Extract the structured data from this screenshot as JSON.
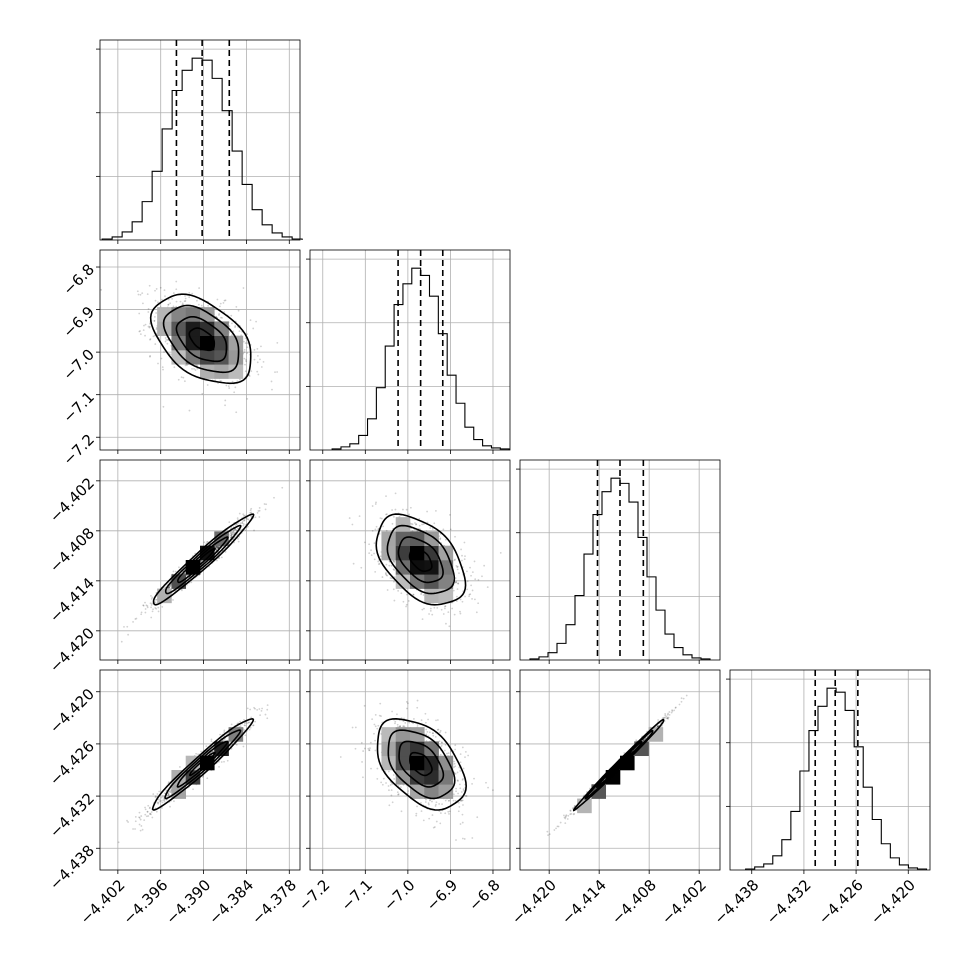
{
  "chart_data": {
    "type": "corner",
    "grid": true,
    "n_params": 4,
    "params": [
      {
        "range": [
          -4.4045,
          -4.3765
        ],
        "ticks": [
          "−4.402",
          "−4.396",
          "−4.390",
          "−4.384",
          "−4.378"
        ],
        "tick_values": [
          -4.402,
          -4.396,
          -4.39,
          -4.384,
          -4.378
        ],
        "mean": -4.3902,
        "sd": 0.0035,
        "quantiles": [
          -4.3938,
          -4.3902,
          -4.3864
        ]
      },
      {
        "range": [
          -7.23,
          -6.76
        ],
        "ticks": [
          "−7.2",
          "−7.1",
          "−7.0",
          "−6.9",
          "−6.8"
        ],
        "tick_values": [
          -7.2,
          -7.1,
          -7.0,
          -6.9,
          -6.8
        ],
        "mean": -6.97,
        "sd": 0.052,
        "quantiles": [
          -7.023,
          -6.97,
          -6.918
        ]
      },
      {
        "range": [
          -4.4235,
          -4.3995
        ],
        "ticks": [
          "−4.420",
          "−4.414",
          "−4.408",
          "−4.402"
        ],
        "tick_values": [
          -4.42,
          -4.414,
          -4.408,
          -4.402
        ],
        "mean": -4.4115,
        "sd": 0.0027,
        "quantiles": [
          -4.4142,
          -4.4115,
          -4.4087
        ]
      },
      {
        "range": [
          -4.4405,
          -4.4175
        ],
        "ticks": [
          "−4.438",
          "−4.432",
          "−4.426",
          "−4.420"
        ],
        "tick_values": [
          -4.438,
          -4.432,
          -4.426,
          -4.42
        ],
        "mean": -4.4283,
        "sd": 0.0026,
        "quantiles": [
          -4.4307,
          -4.4284,
          -4.4258
        ]
      }
    ],
    "histograms": [
      [
        1,
        3,
        8,
        18,
        38,
        68,
        110,
        148,
        168,
        180,
        178,
        160,
        128,
        88,
        55,
        30,
        15,
        7,
        3,
        1
      ],
      [
        1,
        3,
        6,
        14,
        30,
        60,
        100,
        140,
        160,
        175,
        168,
        148,
        112,
        72,
        45,
        22,
        10,
        4,
        2,
        1
      ],
      [
        1,
        3,
        7,
        16,
        34,
        62,
        102,
        140,
        162,
        175,
        170,
        152,
        118,
        80,
        48,
        25,
        12,
        5,
        2,
        1
      ],
      [
        1,
        3,
        6,
        14,
        30,
        58,
        98,
        138,
        162,
        180,
        176,
        158,
        122,
        82,
        50,
        26,
        12,
        5,
        2,
        1
      ]
    ],
    "correlations": [
      [
        1.0,
        -0.45,
        0.97,
        0.97
      ],
      [
        -0.45,
        1.0,
        -0.45,
        -0.45
      ],
      [
        0.97,
        -0.45,
        1.0,
        0.995
      ],
      [
        0.97,
        -0.45,
        0.995,
        1.0
      ]
    ]
  }
}
